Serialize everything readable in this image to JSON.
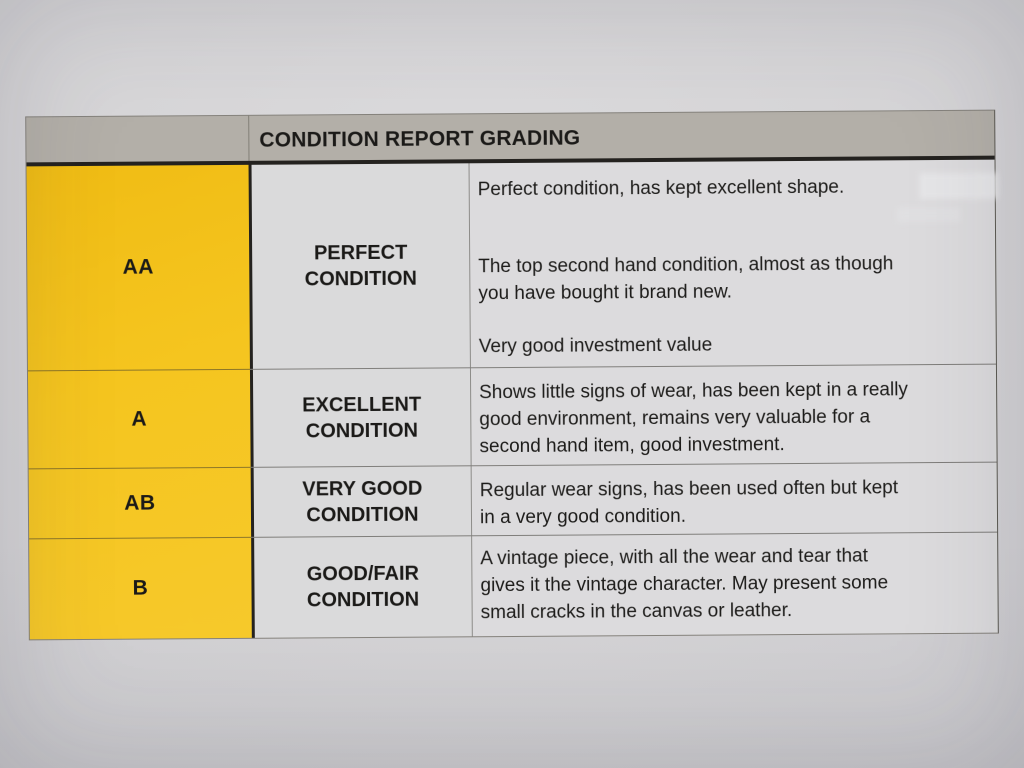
{
  "document": {
    "title": "CONDITION REPORT GRADING",
    "rows": [
      {
        "grade": "AA",
        "label": "PERFECT\nCONDITION",
        "paragraphs": [
          "Perfect condition, has kept excellent shape.",
          "The top second hand condition, almost as though\nyou have bought it brand new.",
          "Very good investment value"
        ]
      },
      {
        "grade": "A",
        "label": "EXCELLENT\nCONDITION",
        "paragraphs": [
          "Shows little signs of wear, has been kept in a really\ngood environment, remains very valuable for a\nsecond hand item, good investment."
        ]
      },
      {
        "grade": "AB",
        "label": "VERY GOOD\nCONDITION",
        "paragraphs": [
          "Regular wear signs, has been used often but kept\nin a very good condition."
        ]
      },
      {
        "grade": "B",
        "label": "GOOD/FAIR\nCONDITION",
        "paragraphs": [
          "A vintage piece, with all the wear and tear that\ngives it the vintage character. May present some\nsmall cracks in the canvas or leather."
        ]
      }
    ],
    "colors": {
      "grade_column": "#f4c41e",
      "header_bg": "#b3afa8",
      "cell_bg": "#dbdadc",
      "paper_bg": "#d6d5d7",
      "text": "#1b1a18"
    }
  }
}
